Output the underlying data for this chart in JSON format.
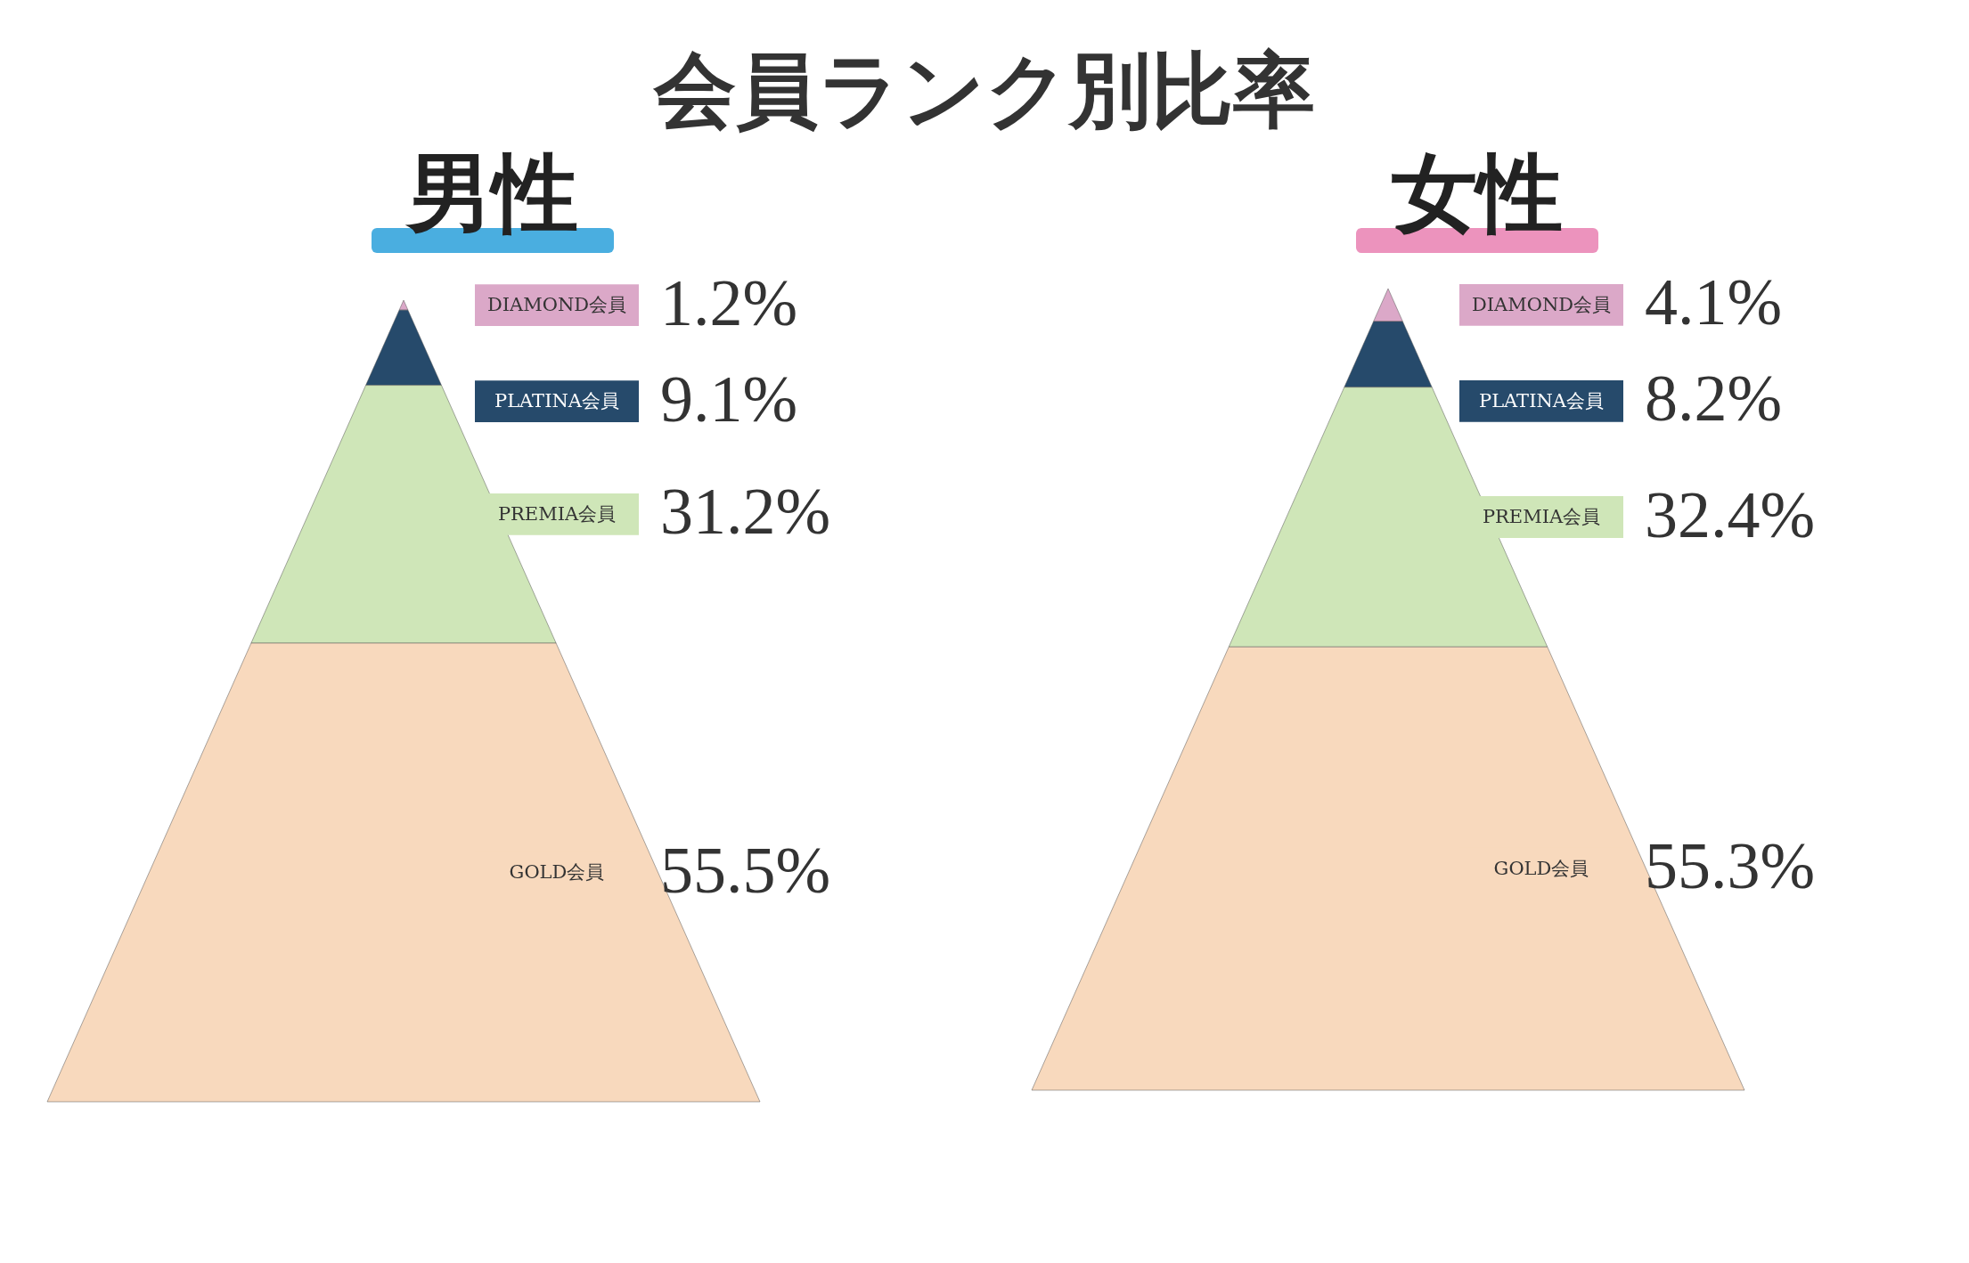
{
  "chart_data": [
    {
      "type": "other",
      "title": "会員ランク別比率",
      "subtitle": "男性",
      "categories": [
        "DIAMOND会員",
        "PLATINA会員",
        "PREMIA会員",
        "GOLD会員"
      ],
      "values": [
        1.2,
        9.1,
        31.2,
        55.5
      ],
      "value_labels": [
        "1.2%",
        "9.1%",
        "31.2%",
        "55.5%"
      ],
      "colors": [
        "#dba8c8",
        "#264a6b",
        "#cfe6b8",
        "#f8d9bd"
      ]
    },
    {
      "type": "other",
      "subtitle": "女性",
      "categories": [
        "DIAMOND会員",
        "PLATINA会員",
        "PREMIA会員",
        "GOLD会員"
      ],
      "values": [
        4.1,
        8.2,
        32.4,
        55.3
      ],
      "value_labels": [
        "4.1%",
        "8.2%",
        "32.4%",
        "55.3%"
      ],
      "colors": [
        "#dba8c8",
        "#264a6b",
        "#cfe6b8",
        "#f8d9bd"
      ]
    }
  ]
}
